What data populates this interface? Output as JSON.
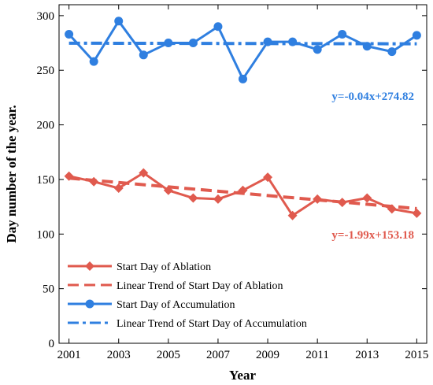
{
  "chart_data": {
    "type": "line",
    "xlabel": "Year",
    "ylabel": "Day number of the year.",
    "xlim": [
      2000.6,
      2015.4
    ],
    "ylim": [
      0,
      310
    ],
    "x_ticks": [
      2001,
      2003,
      2005,
      2007,
      2009,
      2011,
      2013,
      2015
    ],
    "y_ticks": [
      0,
      50,
      100,
      150,
      200,
      250,
      300
    ],
    "x": [
      2001,
      2002,
      2003,
      2004,
      2005,
      2006,
      2007,
      2008,
      2009,
      2010,
      2011,
      2012,
      2013,
      2014,
      2015
    ],
    "series": [
      {
        "name": "Start Day of Ablation",
        "color": "#e05a4e",
        "marker": "diamond",
        "style": "solid",
        "values": [
          153,
          148,
          142,
          156,
          140,
          133,
          132,
          140,
          152,
          117,
          132,
          129,
          133,
          123,
          119
        ]
      },
      {
        "name": "Linear Trend of Start Day of Ablation",
        "color": "#e05a4e",
        "style": "dashed",
        "trend": {
          "slope": -1.99,
          "intercept": 153.18
        }
      },
      {
        "name": "Start Day of Accumulation",
        "color": "#2f7fe0",
        "marker": "circle",
        "style": "solid",
        "values": [
          283,
          258,
          295,
          264,
          275,
          275,
          290,
          242,
          276,
          276,
          269,
          283,
          272,
          267,
          282
        ]
      },
      {
        "name": "Linear Trend of Start Day of Accumulation",
        "color": "#2f7fe0",
        "style": "dashdot",
        "trend": {
          "slope": -0.04,
          "intercept": 274.82
        }
      }
    ],
    "annotations": [
      {
        "text": "y=-0.04x+274.82",
        "color": "#2f7fe0"
      },
      {
        "text": "y=-1.99x+153.18",
        "color": "#e05a4e"
      }
    ],
    "legend": "bottom-left",
    "grid": false
  }
}
